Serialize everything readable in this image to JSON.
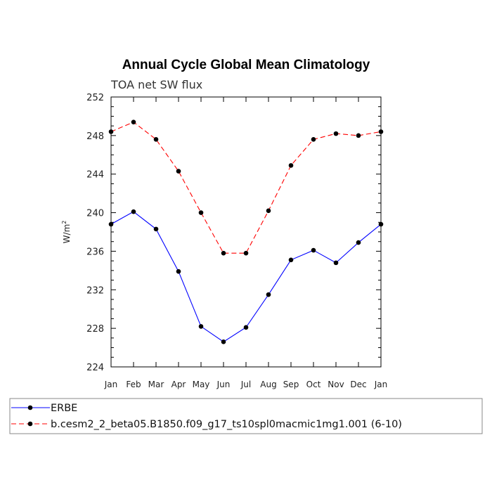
{
  "chart_data": {
    "type": "line",
    "title": "Annual Cycle Global Mean Climatology",
    "subtitle": "TOA net SW flux",
    "ylabel": "W/m",
    "ylabel_superscript": "2",
    "xlabel": "",
    "categories": [
      "Jan",
      "Feb",
      "Mar",
      "Apr",
      "May",
      "Jun",
      "Jul",
      "Aug",
      "Sep",
      "Oct",
      "Nov",
      "Dec",
      "Jan"
    ],
    "ylim": [
      224,
      252
    ],
    "yticks": [
      224,
      228,
      232,
      236,
      240,
      244,
      248,
      252
    ],
    "grid": false,
    "legend_position": "bottom",
    "series": [
      {
        "name": "ERBE",
        "color": "#0000ff",
        "line_style": "solid",
        "marker": "filled-circle",
        "values": [
          238.8,
          240.1,
          238.3,
          233.9,
          228.2,
          226.6,
          228.1,
          231.5,
          235.1,
          236.1,
          234.8,
          236.9,
          238.8
        ]
      },
      {
        "name": "b.cesm2_2_beta05.B1850.f09_g17_ts10spl0macmic1mg1.001 (6-10)",
        "color": "#ff0000",
        "line_style": "dashed",
        "marker": "filled-circle",
        "values": [
          248.4,
          249.4,
          247.6,
          244.3,
          240.0,
          235.8,
          235.8,
          240.2,
          244.9,
          247.6,
          248.2,
          248.0,
          248.4
        ]
      }
    ]
  }
}
